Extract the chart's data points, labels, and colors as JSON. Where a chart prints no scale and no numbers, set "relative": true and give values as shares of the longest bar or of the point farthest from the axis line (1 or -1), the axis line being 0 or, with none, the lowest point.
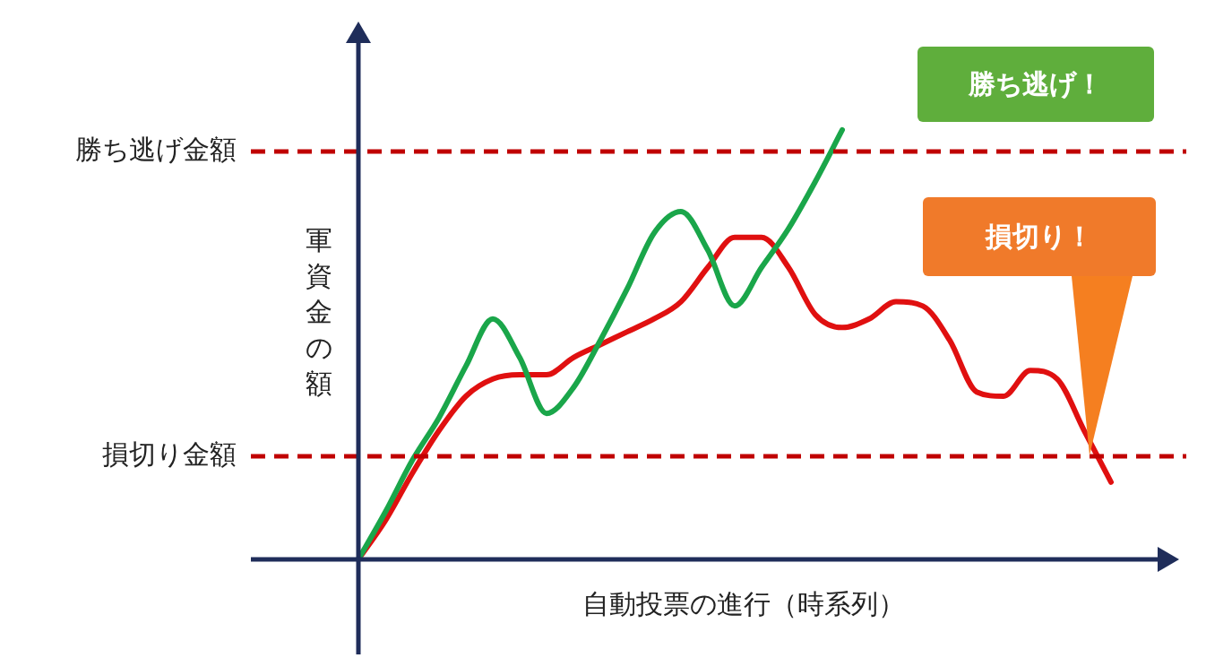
{
  "chart_data": {
    "type": "line",
    "relative": true,
    "xlabel": "自動投票の進行（時系列）",
    "ylabel": "軍資金の額",
    "categories": [
      null,
      null,
      null,
      null,
      null,
      null,
      null,
      null,
      null,
      null,
      null,
      null,
      null,
      null,
      null,
      null,
      null,
      null,
      null,
      null,
      null,
      null,
      null,
      null,
      null,
      null,
      null,
      null,
      null
    ],
    "series": [
      {
        "color": "#1aa64a",
        "values": [
          0,
          0.11,
          0.23,
          0.33,
          0.45,
          0.56,
          0.47,
          0.34,
          0.4,
          0.51,
          0.63,
          0.76,
          0.81,
          0.72,
          0.59,
          0.68,
          0.77,
          0.88,
          1,
          null,
          null,
          null,
          null,
          null,
          null,
          null,
          null,
          null,
          null
        ]
      },
      {
        "color": "#e01010",
        "values": [
          0,
          0.09,
          0.2,
          0.3,
          0.38,
          0.42,
          0.43,
          0.43,
          0.47,
          0.5,
          0.53,
          0.56,
          0.6,
          0.68,
          0.75,
          0.75,
          0.68,
          0.57,
          0.54,
          0.56,
          0.6,
          0.59,
          0.51,
          0.39,
          0.38,
          0.44,
          0.42,
          0.3,
          0.18
        ]
      }
    ],
    "ref_lines": [
      {
        "axis": "y",
        "value": 0.95,
        "label": "勝ち逃げ金額",
        "color": "#c00000",
        "line_style": "dashed"
      },
      {
        "axis": "y",
        "value": 0.24,
        "label": "損切り金額",
        "color": "#c00000",
        "line_style": "dashed"
      }
    ],
    "annotations": [
      "勝ち逃げ！",
      "損切り！"
    ],
    "marker": "none",
    "legend": false
  }
}
